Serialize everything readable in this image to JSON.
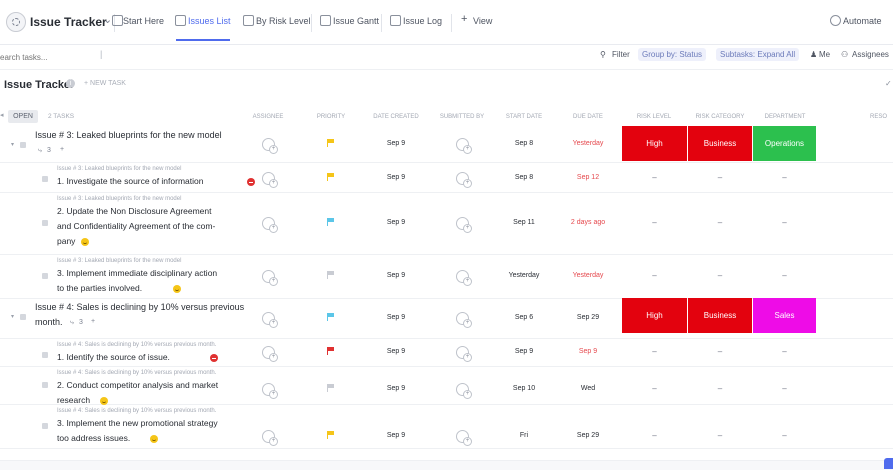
{
  "header": {
    "title": "Issue Tracker",
    "tabs": [
      {
        "label": "Start Here",
        "icon": "doc-icon"
      },
      {
        "label": "Issues List",
        "icon": "list-icon",
        "active": true
      },
      {
        "label": "By Risk Level",
        "icon": "board-icon"
      },
      {
        "label": "Issue Gantt",
        "icon": "gantt-icon"
      },
      {
        "label": "Issue Log",
        "icon": "doc-icon"
      }
    ],
    "add_view": "View",
    "automate": "Automate"
  },
  "toolbar": {
    "search_placeholder": "earch tasks...",
    "filter": "Filter",
    "group_by": "Group by: Status",
    "subtasks": "Subtasks: Expand All",
    "me": "Me",
    "assignees": "Assignees"
  },
  "list": {
    "title": "Issue Tracker",
    "new_task": "+ NEW TASK",
    "status": "OPEN",
    "task_count": "2 TASKS",
    "columns": [
      "ASSIGNEE",
      "PRIORITY",
      "DATE CREATED",
      "SUBMITTED BY",
      "START DATE",
      "DUE DATE",
      "RISK LEVEL",
      "RISK CATEGORY",
      "DEPARTMENT",
      "RESO"
    ]
  },
  "colors": {
    "accent": "#4f6bed",
    "high": "#e3020e",
    "business": "#e3020e",
    "operations": "#2cc04e",
    "sales": "#ee0ce7",
    "flag_yellow": "#f5c518",
    "flag_cyan": "#5bc6e8",
    "flag_red": "#e03131",
    "flag_gray": "#c9ccd3"
  },
  "rows": [
    {
      "kind": "parent",
      "title": "Issue # 3: Leaked blueprints for the new model",
      "subcount": "3",
      "flag": "yellow",
      "created": "Sep 9",
      "start": "Sep 8",
      "due": "Yesterday",
      "due_red": true,
      "risk": "High",
      "category": "Business",
      "department": "Operations"
    },
    {
      "kind": "child",
      "crumb": "Issue # 3: Leaked blueprints for the new model",
      "lines": [
        "1. Investigate the source of information"
      ],
      "status_icon": "stop-icon",
      "flag": "yellow",
      "created": "Sep 9",
      "start": "Sep 8",
      "due": "Sep 12",
      "due_red": true
    },
    {
      "kind": "child",
      "crumb": "Issue # 3: Leaked blueprints for the new model",
      "lines": [
        "2. Update the Non Disclosure Agreement",
        "and Confidentiality Agreement of the com-",
        "pany"
      ],
      "status_icon": "smile-icon",
      "flag": "cyan",
      "created": "Sep 9",
      "start": "Sep 11",
      "due": "2 days ago",
      "due_red": true
    },
    {
      "kind": "child",
      "crumb": "Issue # 3: Leaked blueprints for the new model",
      "lines": [
        "3. Implement immediate disciplinary action",
        "to the parties involved."
      ],
      "status_icon": "smile-icon",
      "flag": "gray",
      "created": "Sep 9",
      "start": "Yesterday",
      "due": "Yesterday",
      "due_red": true
    },
    {
      "kind": "parent",
      "title": "Issue # 4: Sales is declining by 10% versus previous",
      "title2": "month.",
      "subcount": "3",
      "flag": "cyan",
      "created": "Sep 9",
      "start": "Sep 6",
      "due": "Sep 29",
      "due_red": false,
      "risk": "High",
      "category": "Business",
      "department": "Sales"
    },
    {
      "kind": "child",
      "crumb": "Issue # 4: Sales is declining by 10% versus previous month.",
      "lines": [
        "1. Identify the source of issue."
      ],
      "status_icon": "stop-icon",
      "flag": "red",
      "created": "Sep 9",
      "start": "Sep 9",
      "due": "Sep 9",
      "due_red": true
    },
    {
      "kind": "child",
      "crumb": "Issue # 4: Sales is declining by 10% versus previous month.",
      "lines": [
        "2. Conduct competitor analysis and market",
        "research"
      ],
      "status_icon": "smile-icon",
      "flag": "gray",
      "created": "Sep 9",
      "start": "Sep 10",
      "due": "Wed",
      "due_red": false
    },
    {
      "kind": "child",
      "crumb": "Issue # 4: Sales is declining by 10% versus previous month.",
      "lines": [
        "3. Implement the new promotional strategy",
        "too address issues."
      ],
      "status_icon": "smile-icon",
      "flag": "yellow",
      "created": "Sep 9",
      "start": "Fri",
      "due": "Sep 29",
      "due_red": false
    }
  ],
  "empty_cell": "–"
}
